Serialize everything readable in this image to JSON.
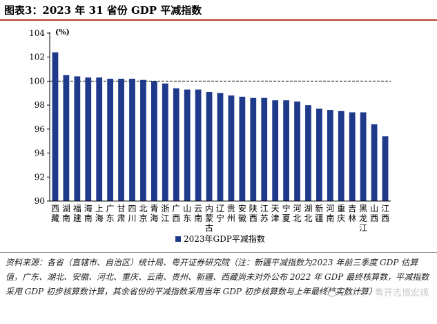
{
  "title": "图表3：2023 年 31 省份 GDP 平减指数",
  "chart_data": {
    "type": "bar",
    "title": "",
    "ylabel": "(%)",
    "xlabel": "",
    "ylim": [
      90,
      104
    ],
    "yticks": [
      90,
      92,
      94,
      96,
      98,
      100,
      102,
      104
    ],
    "reference_line": 100,
    "bar_color": "#1f3a8a",
    "legend_position": "bottom-left",
    "categories": [
      "西藏",
      "湖南",
      "福建",
      "海南",
      "上海",
      "广东",
      "甘肃",
      "四川",
      "北京",
      "青海",
      "浙江",
      "广西",
      "山东",
      "云南",
      "内蒙古",
      "辽宁",
      "贵州",
      "安徽",
      "陕西",
      "江苏",
      "天津",
      "宁夏",
      "河北",
      "湖北",
      "新疆",
      "河南",
      "重庆",
      "吉林",
      "黑龙江",
      "山西",
      "江西"
    ],
    "series": [
      {
        "name": "2023年GDP平减指数",
        "values": [
          102.4,
          100.5,
          100.4,
          100.3,
          100.3,
          100.2,
          100.2,
          100.2,
          100.1,
          100.0,
          99.8,
          99.4,
          99.3,
          99.3,
          99.1,
          99.0,
          98.8,
          98.7,
          98.6,
          98.6,
          98.4,
          98.4,
          98.3,
          98.0,
          97.7,
          97.6,
          97.5,
          97.4,
          97.4,
          96.4,
          95.4
        ]
      }
    ]
  },
  "source_note": "资料来源：各省（直辖市、自治区）统计局、粤开证券研究院（注：新疆平减指数为2023 年前三季度 GDP 估算值，广东、湖北、安徽、河北、重庆、云南、贵州、新疆、西藏尚未对外公布 2022 年 GDP 最终核算数，平减指数采用 GDP 初步核算数计算，其余省份的平减指数采用当年 GDP 初步核算数与上年最终核实数计算）",
  "watermark": {
    "icon": "wechat-icon",
    "text": "公众号 · 粤开志恒宏观"
  }
}
